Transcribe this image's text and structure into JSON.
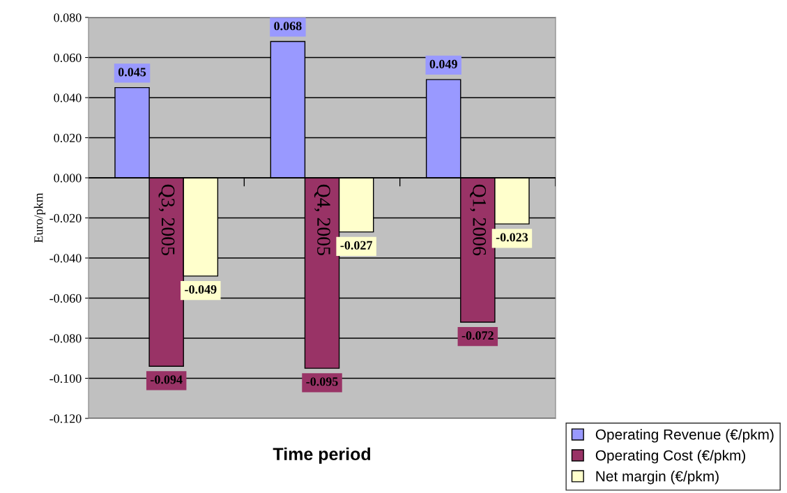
{
  "chart_data": {
    "type": "bar",
    "xlabel": "Time period",
    "ylabel": "Euro/pkm",
    "categories": [
      "Q3, 2005",
      "Q4, 2005",
      "Q1, 2006"
    ],
    "series": [
      {
        "name": "Operating Revenue (€/pkm)",
        "color": "#9999ff",
        "values": [
          0.045,
          0.068,
          0.049
        ]
      },
      {
        "name": "Operating Cost (€/pkm)",
        "color": "#993366",
        "values": [
          -0.094,
          -0.095,
          -0.072
        ]
      },
      {
        "name": "Net margin (€/pkm)",
        "color": "#ffffcc",
        "values": [
          -0.049,
          -0.027,
          -0.023
        ]
      }
    ],
    "ylim": [
      -0.12,
      0.08
    ],
    "yticks": [
      {
        "value": -0.12,
        "label": "-0.120"
      },
      {
        "value": -0.1,
        "label": "-0.100"
      },
      {
        "value": -0.08,
        "label": "-0.080"
      },
      {
        "value": -0.06,
        "label": "-0.060"
      },
      {
        "value": -0.04,
        "label": "-0.040"
      },
      {
        "value": -0.02,
        "label": "-0.020"
      },
      {
        "value": 0,
        "label": "0.000"
      },
      {
        "value": 0.02,
        "label": "0.020"
      },
      {
        "value": 0.04,
        "label": "0.040"
      },
      {
        "value": 0.06,
        "label": "0.060"
      },
      {
        "value": 0.08,
        "label": "0.080"
      }
    ],
    "grid": "y",
    "legend": "bottom right",
    "data_labels": true
  }
}
